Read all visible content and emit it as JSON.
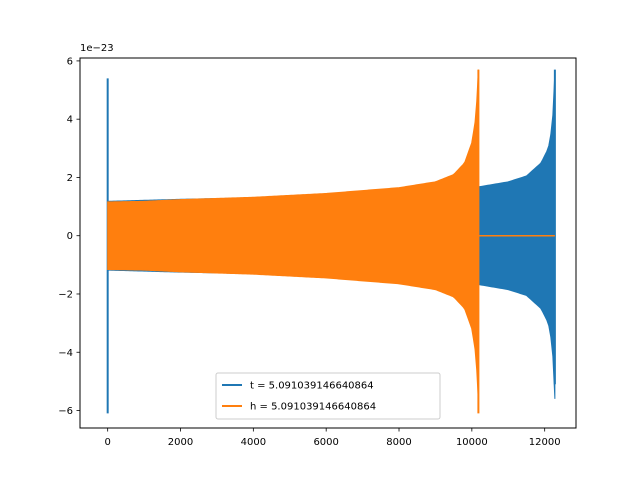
{
  "chart_data": {
    "type": "line",
    "title": "",
    "xlabel": "",
    "ylabel": "",
    "offset_label": "1e−23",
    "xlim": [
      -760,
      12860
    ],
    "ylim": [
      -6.6,
      6.1
    ],
    "xticks": [
      0,
      2000,
      4000,
      6000,
      8000,
      10000,
      12000
    ],
    "xtick_labels": [
      "0",
      "2000",
      "4000",
      "6000",
      "8000",
      "10000",
      "12000"
    ],
    "yticks": [
      -6,
      -4,
      -2,
      0,
      2,
      4,
      6
    ],
    "ytick_labels": [
      "−6",
      "−4",
      "−2",
      "0",
      "2",
      "4",
      "6"
    ],
    "grid": false,
    "legend_position": "lower center",
    "series": [
      {
        "name": "t = 5.091039146640864",
        "color": "#1f77b4",
        "envelope": {
          "x": [
            0,
            2000,
            4000,
            6000,
            8000,
            9000,
            10000,
            10200,
            11000,
            11500,
            11900,
            12100,
            12200,
            12260,
            12280
          ],
          "amplitude": [
            1.18,
            1.25,
            1.3,
            1.38,
            1.5,
            1.56,
            1.64,
            1.68,
            1.85,
            2.05,
            2.5,
            3.0,
            3.7,
            4.8,
            5.6
          ]
        },
        "spikes": [
          {
            "x": 0,
            "max": 5.4,
            "min": -6.1
          },
          {
            "x": 12280,
            "max": 5.7,
            "min": -5.1
          }
        ]
      },
      {
        "name": "h = 5.091039146640864",
        "color": "#ff7f0e",
        "envelope": {
          "x": [
            0,
            1000,
            2000,
            4000,
            6000,
            8000,
            9000,
            9500,
            9800,
            10000,
            10100,
            10150,
            10180
          ],
          "amplitude": [
            1.16,
            1.18,
            1.24,
            1.32,
            1.45,
            1.65,
            1.85,
            2.1,
            2.5,
            3.2,
            4.0,
            4.9,
            5.7
          ]
        },
        "spikes": [
          {
            "x": 10180,
            "max": 5.7,
            "min": -6.1
          }
        ],
        "flat_after": [
          10180,
          12280
        ]
      }
    ]
  }
}
